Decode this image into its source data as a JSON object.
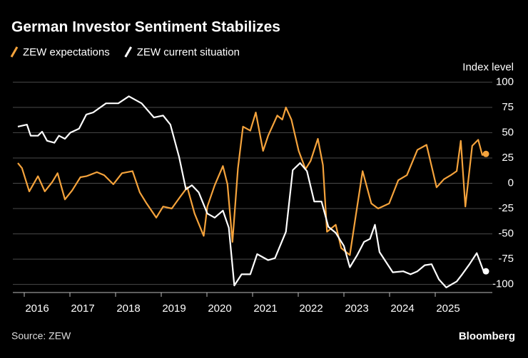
{
  "chart_data": {
    "type": "line",
    "title": "German Investor Sentiment Stabilizes",
    "y_label": "Index level",
    "source": "Source: ZEW",
    "credit": "Bloomberg",
    "xlim": [
      2015.75,
      2026.25
    ],
    "xticks": [
      2016,
      2017,
      2018,
      2019,
      2020,
      2021,
      2022,
      2023,
      2024,
      2025
    ],
    "ylim": [
      -108,
      108
    ],
    "yticks": [
      100,
      75,
      50,
      25,
      0,
      -25,
      -50,
      -75,
      -100
    ],
    "grid": true,
    "series": [
      {
        "name": "ZEW expectations",
        "color": "#f5a33c",
        "x": [
          2015.86,
          2015.95,
          2016.11,
          2016.3,
          2016.45,
          2016.61,
          2016.73,
          2016.89,
          2017.05,
          2017.23,
          2017.36,
          2017.59,
          2017.75,
          2017.95,
          2018.14,
          2018.37,
          2018.53,
          2018.68,
          2018.89,
          2019.04,
          2019.23,
          2019.42,
          2019.57,
          2019.73,
          2019.93,
          2020.01,
          2020.17,
          2020.35,
          2020.45,
          2020.56,
          2020.68,
          2020.79,
          2020.95,
          2021.07,
          2021.23,
          2021.34,
          2021.54,
          2021.65,
          2021.73,
          2021.85,
          2022.01,
          2022.16,
          2022.27,
          2022.43,
          2022.54,
          2022.63,
          2022.82,
          2022.94,
          2023.13,
          2023.25,
          2023.41,
          2023.6,
          2023.75,
          2023.99,
          2024.19,
          2024.38,
          2024.61,
          2024.81,
          2025.03,
          2025.19,
          2025.34,
          2025.47,
          2025.56,
          2025.66,
          2025.81,
          2025.94,
          2026.03,
          2026.11
        ],
        "values": [
          20,
          15,
          -8,
          7,
          -8,
          1,
          10,
          -16,
          -7,
          6,
          7,
          11,
          8,
          -1,
          10,
          12,
          -9,
          -20,
          -34,
          -23,
          -25,
          -13,
          -4,
          -30,
          -52,
          -23,
          -2,
          17,
          -1,
          -58,
          15,
          56,
          52,
          70,
          32,
          47,
          67,
          63,
          75,
          63,
          32,
          14,
          22,
          44,
          18,
          -48,
          -41,
          -64,
          -71,
          -35,
          12,
          -20,
          -25,
          -20,
          3,
          8,
          33,
          38,
          -4,
          4,
          8,
          12,
          42,
          -23,
          37,
          43,
          28,
          29
        ]
      },
      {
        "name": "ZEW current situation",
        "color": "#ffffff",
        "x": [
          2015.86,
          2016.06,
          2016.14,
          2016.3,
          2016.39,
          2016.5,
          2016.66,
          2016.76,
          2016.89,
          2017.01,
          2017.2,
          2017.36,
          2017.51,
          2017.79,
          2018.06,
          2018.29,
          2018.57,
          2018.84,
          2019.04,
          2019.2,
          2019.39,
          2019.54,
          2019.67,
          2019.82,
          2020.01,
          2020.17,
          2020.35,
          2020.48,
          2020.6,
          2020.76,
          2020.95,
          2021.1,
          2021.34,
          2021.49,
          2021.73,
          2021.88,
          2022.04,
          2022.19,
          2022.35,
          2022.51,
          2022.66,
          2022.82,
          2023.0,
          2023.13,
          2023.29,
          2023.44,
          2023.57,
          2023.68,
          2023.78,
          2024.07,
          2024.3,
          2024.46,
          2024.61,
          2024.77,
          2024.92,
          2025.08,
          2025.24,
          2025.47,
          2025.59,
          2025.75,
          2025.91,
          2026.06,
          2026.11
        ],
        "values": [
          56,
          58,
          47,
          47,
          51,
          42,
          40,
          47,
          44,
          50,
          54,
          68,
          70,
          79,
          79,
          86,
          79,
          65,
          67,
          58,
          26,
          -6,
          -2,
          -9,
          -30,
          -34,
          -27,
          -44,
          -101,
          -90,
          -90,
          -70,
          -76,
          -74,
          -48,
          13,
          20,
          12,
          -18,
          -18,
          -43,
          -49,
          -62,
          -83,
          -71,
          -58,
          -55,
          -41,
          -68,
          -88,
          -87,
          -90,
          -87,
          -81,
          -80,
          -95,
          -103,
          -97,
          -90,
          -80,
          -69,
          -87,
          -87
        ]
      }
    ]
  }
}
